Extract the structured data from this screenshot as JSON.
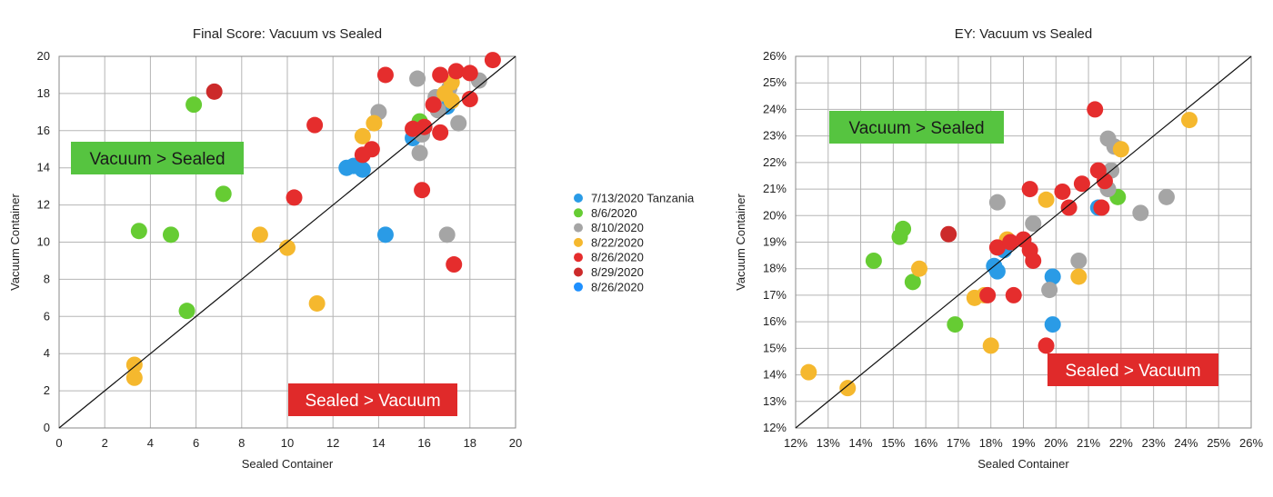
{
  "chart_data": [
    {
      "type": "scatter",
      "title": "Final Score: Vacuum vs Sealed",
      "xlabel": "Sealed Container",
      "ylabel": "Vacuum Container",
      "xlim": [
        0,
        20
      ],
      "ylim": [
        0,
        20
      ],
      "xticks": [
        "0",
        "2",
        "4",
        "6",
        "8",
        "10",
        "12",
        "14",
        "16",
        "18",
        "20"
      ],
      "yticks": [
        "0",
        "2",
        "4",
        "6",
        "8",
        "10",
        "12",
        "14",
        "16",
        "18",
        "20"
      ],
      "grid": true,
      "reference_line": "y = x",
      "annotations": [
        {
          "text": "Vacuum > Sealed",
          "color": "#56c440"
        },
        {
          "text": "Sealed > Vacuum",
          "color": "#e02a2a"
        }
      ],
      "series": [
        {
          "name": "7/13/2020 Tanzania",
          "color": "#2a9be6",
          "points": [
            [
              15.5,
              15.6
            ],
            [
              17.0,
              17.3
            ],
            [
              14.3,
              10.4
            ],
            [
              12.6,
              14.0
            ],
            [
              12.9,
              14.1
            ],
            [
              13.3,
              13.9
            ]
          ]
        },
        {
          "name": "8/6/2020",
          "color": "#66cc33",
          "points": [
            [
              5.9,
              17.4
            ],
            [
              7.2,
              12.6
            ],
            [
              3.5,
              10.6
            ],
            [
              4.9,
              10.4
            ],
            [
              5.6,
              6.3
            ],
            [
              15.8,
              16.5
            ]
          ]
        },
        {
          "name": "8/10/2020",
          "color": "#a5a5a5",
          "points": [
            [
              15.7,
              18.8
            ],
            [
              16.5,
              17.8
            ],
            [
              17.1,
              18.3
            ],
            [
              18.4,
              18.7
            ],
            [
              14.0,
              17.0
            ],
            [
              16.6,
              17.1
            ],
            [
              17.5,
              16.4
            ],
            [
              15.9,
              15.8
            ],
            [
              15.8,
              14.8
            ],
            [
              17.0,
              10.4
            ]
          ]
        },
        {
          "name": "8/22/2020",
          "color": "#f5b82e",
          "points": [
            [
              17.2,
              18.6
            ],
            [
              16.9,
              18.0
            ],
            [
              17.2,
              17.6
            ],
            [
              13.8,
              16.4
            ],
            [
              13.3,
              15.7
            ],
            [
              8.8,
              10.4
            ],
            [
              10.0,
              9.7
            ],
            [
              11.3,
              6.7
            ],
            [
              3.3,
              3.4
            ],
            [
              3.3,
              2.7
            ]
          ]
        },
        {
          "name": "8/26/2020",
          "color": "#e52d2d",
          "points": [
            [
              16.7,
              19.0
            ],
            [
              17.4,
              19.2
            ],
            [
              18.0,
              19.1
            ],
            [
              19.0,
              19.8
            ],
            [
              14.3,
              19.0
            ],
            [
              18.0,
              17.7
            ],
            [
              16.4,
              17.4
            ],
            [
              11.2,
              16.3
            ],
            [
              15.5,
              16.1
            ],
            [
              16.0,
              16.2
            ],
            [
              16.7,
              15.9
            ],
            [
              13.7,
              15.0
            ],
            [
              13.3,
              14.7
            ],
            [
              10.3,
              12.4
            ],
            [
              15.9,
              12.8
            ],
            [
              17.3,
              8.8
            ]
          ]
        },
        {
          "name": "8/29/2020",
          "color": "#cc2a2a",
          "points": [
            [
              6.8,
              18.1
            ]
          ]
        },
        {
          "name": "8/26/2020",
          "color": "#1e90ff",
          "points": []
        }
      ]
    },
    {
      "type": "scatter",
      "title": "EY: Vacuum vs Sealed",
      "xlabel": "Sealed Container",
      "ylabel": "Vacuum Container",
      "xlim": [
        12,
        26
      ],
      "ylim": [
        12,
        26
      ],
      "xticks": [
        "12%",
        "13%",
        "14%",
        "15%",
        "16%",
        "17%",
        "18%",
        "19%",
        "20%",
        "21%",
        "22%",
        "23%",
        "24%",
        "25%",
        "26%"
      ],
      "yticks": [
        "12%",
        "13%",
        "14%",
        "15%",
        "16%",
        "17%",
        "18%",
        "19%",
        "20%",
        "21%",
        "22%",
        "23%",
        "24%",
        "25%",
        "26%"
      ],
      "grid": true,
      "reference_line": "y = x",
      "annotations": [
        {
          "text": "Vacuum > Sealed",
          "color": "#56c440"
        },
        {
          "text": "Sealed > Vacuum",
          "color": "#e02a2a"
        }
      ],
      "series": [
        {
          "name": "7/13/2020 Tanzania",
          "color": "#2a9be6",
          "points": [
            [
              18.1,
              18.1
            ],
            [
              18.2,
              17.9
            ],
            [
              18.4,
              18.7
            ],
            [
              19.9,
              17.7
            ],
            [
              19.9,
              15.9
            ],
            [
              21.3,
              20.3
            ]
          ]
        },
        {
          "name": "8/6/2020",
          "color": "#66cc33",
          "points": [
            [
              14.4,
              18.3
            ],
            [
              15.2,
              19.2
            ],
            [
              15.3,
              19.5
            ],
            [
              15.6,
              17.5
            ],
            [
              16.9,
              15.9
            ],
            [
              21.9,
              20.7
            ]
          ]
        },
        {
          "name": "8/10/2020",
          "color": "#a5a5a5",
          "points": [
            [
              18.2,
              20.5
            ],
            [
              19.3,
              19.7
            ],
            [
              21.6,
              22.9
            ],
            [
              21.7,
              21.7
            ],
            [
              21.8,
              22.6
            ],
            [
              21.6,
              21.0
            ],
            [
              22.6,
              20.1
            ],
            [
              23.4,
              20.7
            ],
            [
              19.8,
              17.2
            ],
            [
              20.7,
              18.3
            ]
          ]
        },
        {
          "name": "8/22/2020",
          "color": "#f5b82e",
          "points": [
            [
              24.1,
              23.6
            ],
            [
              22.0,
              22.5
            ],
            [
              19.7,
              20.6
            ],
            [
              18.5,
              19.1
            ],
            [
              15.8,
              18.0
            ],
            [
              17.5,
              16.9
            ],
            [
              17.8,
              17.0
            ],
            [
              18.0,
              15.1
            ],
            [
              20.7,
              17.7
            ],
            [
              12.4,
              14.1
            ],
            [
              13.6,
              13.5
            ]
          ]
        },
        {
          "name": "8/26/2020",
          "color": "#e52d2d",
          "points": [
            [
              21.2,
              24.0
            ],
            [
              21.3,
              21.7
            ],
            [
              21.5,
              21.3
            ],
            [
              20.8,
              21.2
            ],
            [
              20.4,
              20.3
            ],
            [
              20.2,
              20.9
            ],
            [
              19.2,
              21.0
            ],
            [
              18.2,
              18.8
            ],
            [
              18.6,
              19.0
            ],
            [
              19.0,
              19.1
            ],
            [
              19.2,
              18.7
            ],
            [
              19.3,
              18.3
            ],
            [
              18.7,
              17.0
            ],
            [
              17.9,
              17.0
            ],
            [
              19.7,
              15.1
            ],
            [
              21.4,
              20.3
            ]
          ]
        },
        {
          "name": "8/29/2020",
          "color": "#cc2a2a",
          "points": [
            [
              16.7,
              19.3
            ]
          ]
        },
        {
          "name": "8/26/2020",
          "color": "#1e90ff",
          "points": []
        }
      ]
    }
  ],
  "legend": {
    "placement": "center",
    "entries": [
      {
        "label": "7/13/2020 Tanzania",
        "color": "#2a9be6"
      },
      {
        "label": "8/6/2020",
        "color": "#66cc33"
      },
      {
        "label": "8/10/2020",
        "color": "#a5a5a5"
      },
      {
        "label": "8/22/2020",
        "color": "#f5b82e"
      },
      {
        "label": "8/26/2020",
        "color": "#e52d2d"
      },
      {
        "label": "8/29/2020",
        "color": "#cc2a2a"
      },
      {
        "label": "8/26/2020",
        "color": "#1e90ff"
      }
    ]
  }
}
